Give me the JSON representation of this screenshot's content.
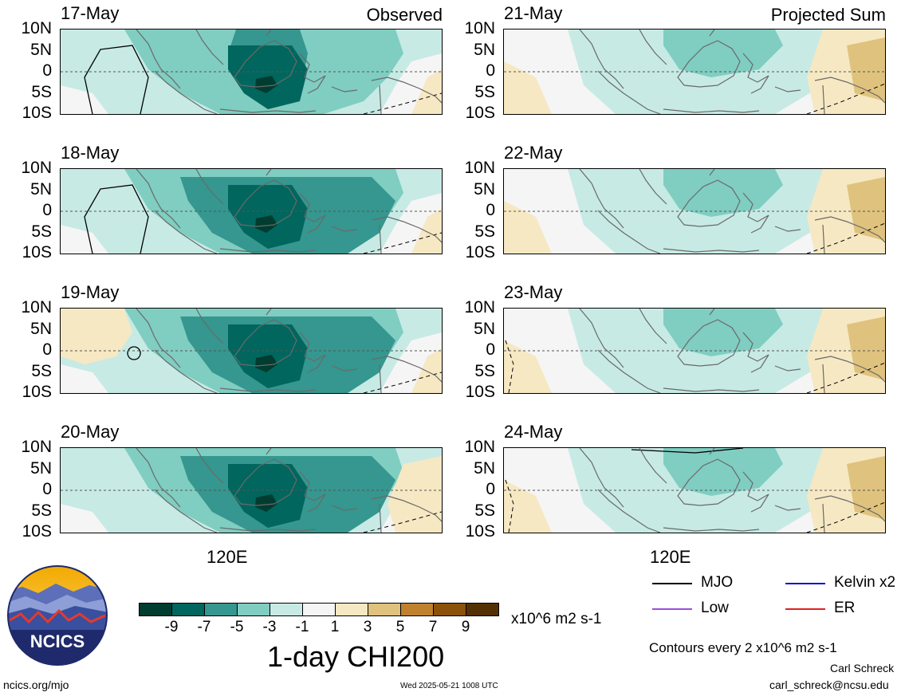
{
  "panels": [
    {
      "date": "17-May",
      "label": "Observed"
    },
    {
      "date": "18-May",
      "label": ""
    },
    {
      "date": "19-May",
      "label": ""
    },
    {
      "date": "20-May",
      "label": ""
    },
    {
      "date": "21-May",
      "label": "Projected Sum"
    },
    {
      "date": "22-May",
      "label": ""
    },
    {
      "date": "23-May",
      "label": ""
    },
    {
      "date": "24-May",
      "label": ""
    }
  ],
  "lat_labels": [
    "10N",
    "5N",
    "0",
    "5S",
    "10S"
  ],
  "lon_label": "120E",
  "colorbar": {
    "ticks": [
      "-9",
      "-7",
      "-5",
      "-3",
      "-1",
      "1",
      "3",
      "5",
      "7",
      "9"
    ],
    "colors": [
      "#003c30",
      "#01665e",
      "#35978f",
      "#80cdc1",
      "#c7eae5",
      "#f5f5f5",
      "#f6e8c3",
      "#dfc27d",
      "#bf812d",
      "#8c510a",
      "#543005"
    ],
    "units": "x10^6 m2 s-1"
  },
  "title": "1-day CHI200",
  "legend": [
    {
      "label": "MJO",
      "color": "#000000"
    },
    {
      "label": "Kelvin x2",
      "color": "#1010d0"
    },
    {
      "label": "Low",
      "color": "#9b4fd6"
    },
    {
      "label": "ER",
      "color": "#e02020"
    }
  ],
  "contour_note": "Contours every 2 x10^6 m2 s-1",
  "logo_text": "NCICS",
  "footer": {
    "site": "ncics.org/mjo",
    "timestamp": "Wed 2025-05-21 1008 UTC",
    "author": "Carl Schreck",
    "email": "carl_schreck@ncsu.edu"
  }
}
